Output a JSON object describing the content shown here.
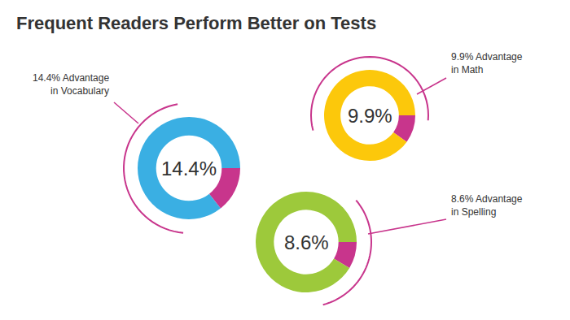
{
  "chart_data": {
    "type": "pie",
    "title": "Frequent Readers Perform Better on Tests",
    "categories": [
      "14.4% Advantage in Vocabulary",
      "9.9% Advantage in Math",
      "8.6% Advantage in Spelling"
    ],
    "values": [
      14.4,
      9.9,
      8.6
    ],
    "value_labels": [
      "14.4%",
      "9.9%",
      "8.6%"
    ],
    "colors": [
      "#3aafe3",
      "#fcc80b",
      "#9dc93b"
    ],
    "color": "#c8358c",
    "ylim": [
      0,
      100
    ],
    "data_labels": true
  }
}
